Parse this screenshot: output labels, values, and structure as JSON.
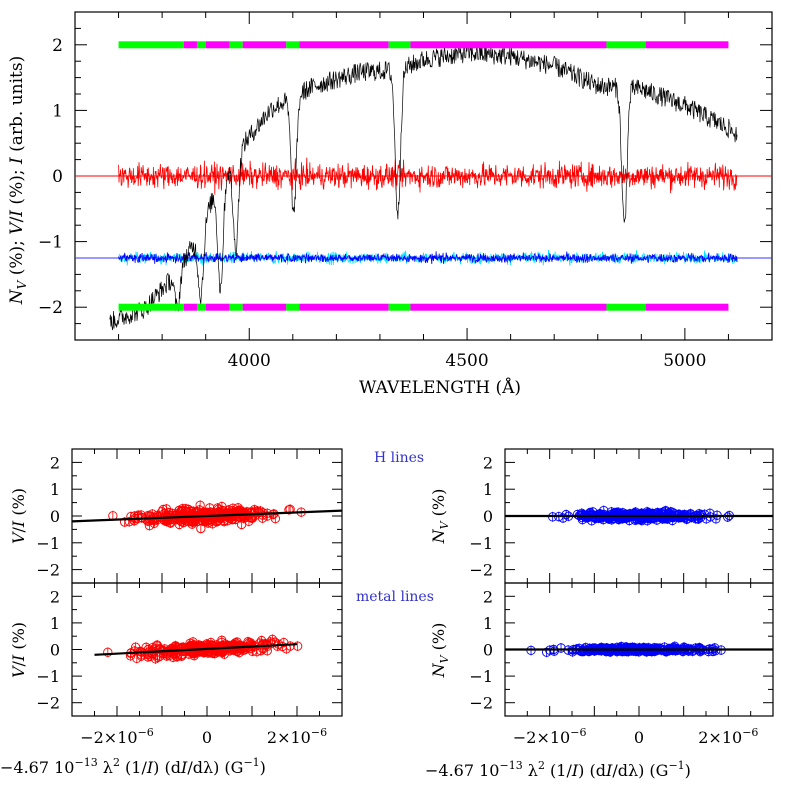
{
  "chart_data": [
    {
      "id": "main",
      "type": "line",
      "xlabel": "WAVELENGTH (Å)",
      "ylabel": "N_V (%); V/I (%); I (arb. units)",
      "xlim": [
        3600,
        5200
      ],
      "ylim": [
        -2.5,
        2.5
      ],
      "x_ticks": [
        4000,
        4500,
        5000
      ],
      "y_ticks": [
        -2,
        -1,
        0,
        1,
        2
      ],
      "tick_labels_x": [
        "4000",
        "4500",
        "5000"
      ],
      "tick_labels_y": [
        "−2",
        "−1",
        "0",
        "1",
        "2"
      ],
      "grid": false,
      "reference_lines": [
        {
          "y": 0,
          "color": "#ff0000"
        },
        {
          "y": -1.25,
          "color": "#3333ff"
        }
      ],
      "mask_bars": [
        {
          "y": 2,
          "x_range": [
            3700,
            5100
          ],
          "segments": [
            {
              "from": 3700,
              "to": 3850,
              "color": "#00ff00"
            },
            {
              "from": 3850,
              "to": 3880,
              "color": "#ff00ff"
            },
            {
              "from": 3880,
              "to": 3900,
              "color": "#00ff00"
            },
            {
              "from": 3900,
              "to": 3955,
              "color": "#ff00ff"
            },
            {
              "from": 3955,
              "to": 3985,
              "color": "#00ff00"
            },
            {
              "from": 3985,
              "to": 4085,
              "color": "#ff00ff"
            },
            {
              "from": 4085,
              "to": 4115,
              "color": "#00ff00"
            },
            {
              "from": 4115,
              "to": 4320,
              "color": "#ff00ff"
            },
            {
              "from": 4320,
              "to": 4370,
              "color": "#00ff00"
            },
            {
              "from": 4370,
              "to": 4820,
              "color": "#ff00ff"
            },
            {
              "from": 4820,
              "to": 4910,
              "color": "#00ff00"
            },
            {
              "from": 4910,
              "to": 5100,
              "color": "#ff00ff"
            }
          ]
        },
        {
          "y": -2,
          "x_range": [
            3700,
            5100
          ],
          "segments": [
            {
              "from": 3700,
              "to": 3850,
              "color": "#00ff00"
            },
            {
              "from": 3850,
              "to": 3880,
              "color": "#ff00ff"
            },
            {
              "from": 3880,
              "to": 3900,
              "color": "#00ff00"
            },
            {
              "from": 3900,
              "to": 3955,
              "color": "#ff00ff"
            },
            {
              "from": 3955,
              "to": 3985,
              "color": "#00ff00"
            },
            {
              "from": 3985,
              "to": 4085,
              "color": "#ff00ff"
            },
            {
              "from": 4085,
              "to": 4115,
              "color": "#00ff00"
            },
            {
              "from": 4115,
              "to": 4320,
              "color": "#ff00ff"
            },
            {
              "from": 4320,
              "to": 4370,
              "color": "#00ff00"
            },
            {
              "from": 4370,
              "to": 4820,
              "color": "#ff00ff"
            },
            {
              "from": 4820,
              "to": 4910,
              "color": "#00ff00"
            },
            {
              "from": 4910,
              "to": 5100,
              "color": "#ff00ff"
            }
          ]
        }
      ],
      "series": [
        {
          "role": "intensity",
          "color": "#000000",
          "continuum_x": [
            3680,
            3760,
            3820,
            3880,
            3920,
            3980,
            4050,
            4150,
            4250,
            4350,
            4400,
            4500,
            4600,
            4700,
            4800,
            4900,
            5000,
            5100,
            5120
          ],
          "continuum_y": [
            -2.15,
            -1.95,
            -1.5,
            -0.9,
            -0.2,
            0.5,
            1.1,
            1.45,
            1.65,
            1.7,
            1.85,
            1.95,
            1.9,
            1.75,
            1.45,
            1.4,
            1.15,
            0.8,
            0.7
          ],
          "absorption_lines": [
            {
              "x": 3835,
              "depth": 0.6
            },
            {
              "x": 3889,
              "depth": 1.0
            },
            {
              "x": 3934,
              "depth": 1.6
            },
            {
              "x": 3969,
              "depth": 1.4
            },
            {
              "x": 4102,
              "depth": 1.8
            },
            {
              "x": 4341,
              "depth": 2.2
            },
            {
              "x": 4861,
              "depth": 2.1
            }
          ],
          "noise_amplitude": 0.15
        },
        {
          "role": "V/I",
          "color": "#ff0000",
          "x_range": [
            3700,
            5120
          ],
          "level": 0.0,
          "noise_amplitude": 0.13
        },
        {
          "role": "N_V",
          "color": "#0000ff",
          "x_range": [
            3700,
            5120
          ],
          "level": -1.25,
          "noise_amplitude": 0.06
        }
      ]
    },
    {
      "id": "vi-h",
      "type": "scatter",
      "ylabel": "V/I (%)",
      "ylim": [
        -2.5,
        2.5
      ],
      "xlim": [
        -3e-06,
        3e-06
      ],
      "y_ticks": [
        -2,
        -1,
        0,
        1,
        2
      ],
      "tick_labels_y": [
        "−2",
        "−1",
        "0",
        "1",
        "2"
      ],
      "marker_color": "#ff0000",
      "fit_line": {
        "from": [
          -3e-06,
          -0.2
        ],
        "to": [
          3e-06,
          0.2
        ]
      },
      "spread": 0.2,
      "n_points": 300
    },
    {
      "id": "nv-h",
      "type": "scatter",
      "ylabel": "N_V (%)",
      "ylim": [
        -2.5,
        2.5
      ],
      "xlim": [
        -3e-06,
        3e-06
      ],
      "y_ticks": [
        -2,
        -1,
        0,
        1,
        2
      ],
      "tick_labels_y": [
        "−2",
        "−1",
        "0",
        "1",
        "2"
      ],
      "marker_color": "#0000ff",
      "fit_line": {
        "from": [
          -3e-06,
          0.0
        ],
        "to": [
          3e-06,
          0.0
        ]
      },
      "spread": 0.1,
      "n_points": 300
    },
    {
      "id": "vi-metal",
      "type": "scatter",
      "ylabel": "V/I (%)",
      "xlabel": "−4.67 10⁻¹³ λ² (1/I) (dI/dλ) (G⁻¹)",
      "ylim": [
        -2.5,
        2.5
      ],
      "xlim": [
        -3e-06,
        3e-06
      ],
      "y_ticks": [
        -2,
        -1,
        0,
        1,
        2
      ],
      "tick_labels_y": [
        "−2",
        "−1",
        "0",
        "1",
        "2"
      ],
      "x_ticks": [
        -2e-06,
        0,
        2e-06
      ],
      "marker_color": "#ff0000",
      "fit_line": {
        "from": [
          -2.5e-06,
          -0.2
        ],
        "to": [
          2e-06,
          0.2
        ]
      },
      "spread": 0.15,
      "n_points": 300
    },
    {
      "id": "nv-metal",
      "type": "scatter",
      "ylabel": "N_V (%)",
      "xlabel": "−4.67 10⁻¹³ λ² (1/I) (dI/dλ) (G⁻¹)",
      "ylim": [
        -2.5,
        2.5
      ],
      "xlim": [
        -3e-06,
        3e-06
      ],
      "y_ticks": [
        -2,
        -1,
        0,
        1,
        2
      ],
      "tick_labels_y": [
        "−2",
        "−1",
        "0",
        "1",
        "2"
      ],
      "x_ticks": [
        -2e-06,
        0,
        2e-06
      ],
      "marker_color": "#0000ff",
      "fit_line": {
        "from": [
          -3e-06,
          0.0
        ],
        "to": [
          3e-06,
          0.0
        ]
      },
      "spread": 0.06,
      "n_points": 300
    }
  ],
  "annotations": {
    "h_lines": "H lines",
    "metal_lines": "metal lines",
    "annotation_color": "#3333cc"
  },
  "small_x_tick_labels": {
    "neg": "−2×10",
    "neg_exp": "−6",
    "zero": "0",
    "pos": "2×10",
    "pos_exp": "−6"
  }
}
